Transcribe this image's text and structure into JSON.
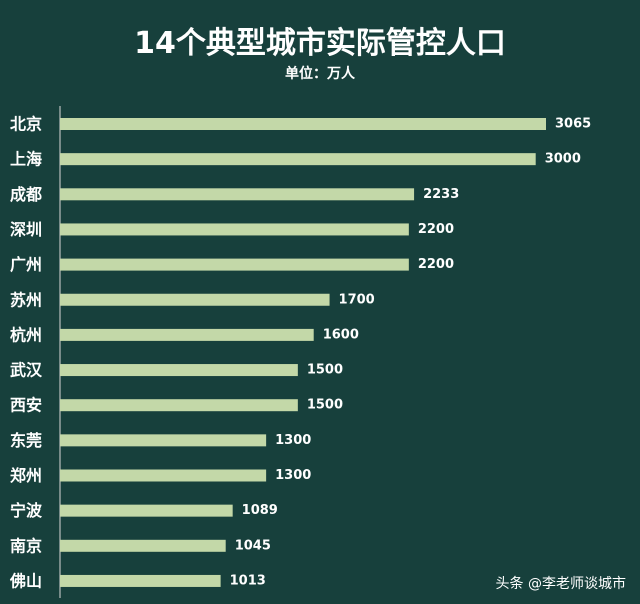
{
  "chart_data": {
    "type": "bar",
    "orientation": "horizontal",
    "title": "14个典型城市实际管控人口",
    "subtitle": "单位：万人",
    "categories": [
      "北京",
      "上海",
      "成都",
      "深圳",
      "广州",
      "苏州",
      "杭州",
      "武汉",
      "西安",
      "东莞",
      "郑州",
      "宁波",
      "南京",
      "佛山"
    ],
    "values": [
      3065,
      3000,
      2233,
      2200,
      2200,
      1700,
      1600,
      1500,
      1500,
      1300,
      1300,
      1089,
      1045,
      1013
    ],
    "xlim": [
      0,
      3065
    ],
    "bar_color": "#c3d8a8",
    "background_color": "#17403c",
    "text_color": "#ffffff",
    "data_labels": true,
    "grid": false,
    "legend": "none"
  },
  "watermark": "头条 @李老师谈城市"
}
